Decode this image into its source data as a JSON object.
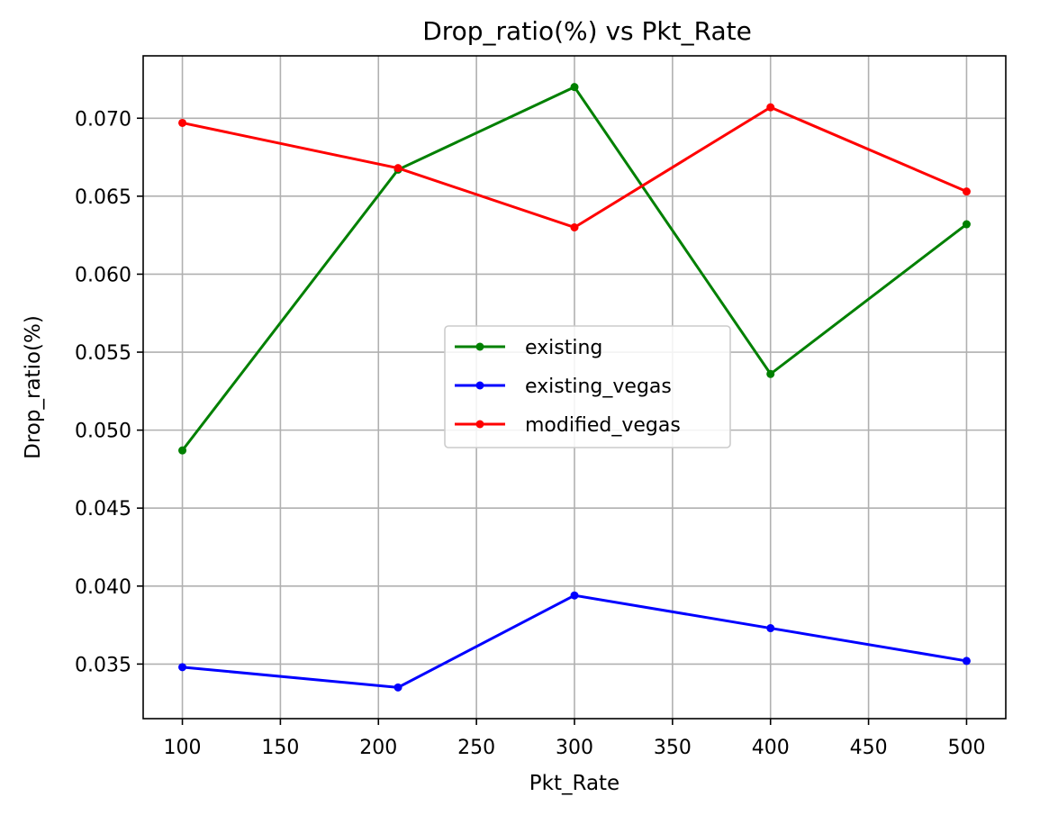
{
  "chart_data": {
    "type": "line",
    "title": "Drop_ratio(%) vs Pkt_Rate",
    "xlabel": "Pkt_Rate",
    "ylabel": "Drop_ratio(%)",
    "xlim": [
      80,
      520
    ],
    "ylim": [
      0.0315,
      0.074
    ],
    "xticks": [
      100,
      150,
      200,
      250,
      300,
      350,
      400,
      450,
      500
    ],
    "yticks": [
      0.035,
      0.04,
      0.045,
      0.05,
      0.055,
      0.06,
      0.065,
      0.07
    ],
    "ytick_labels": [
      "0.035",
      "0.040",
      "0.045",
      "0.050",
      "0.055",
      "0.060",
      "0.065",
      "0.070"
    ],
    "grid": true,
    "legend_position": "center",
    "x": [
      100,
      210,
      300,
      400,
      500
    ],
    "series": [
      {
        "name": "existing",
        "color": "#008000",
        "values": [
          0.0487,
          0.0667,
          0.072,
          0.0536,
          0.0632
        ]
      },
      {
        "name": "existing_vegas",
        "color": "#0000ff",
        "values": [
          0.0348,
          0.0335,
          0.0394,
          0.0373,
          0.0352
        ]
      },
      {
        "name": "modified_vegas",
        "color": "#ff0000",
        "values": [
          0.0697,
          0.0668,
          0.063,
          0.0707,
          0.0653
        ]
      }
    ]
  }
}
